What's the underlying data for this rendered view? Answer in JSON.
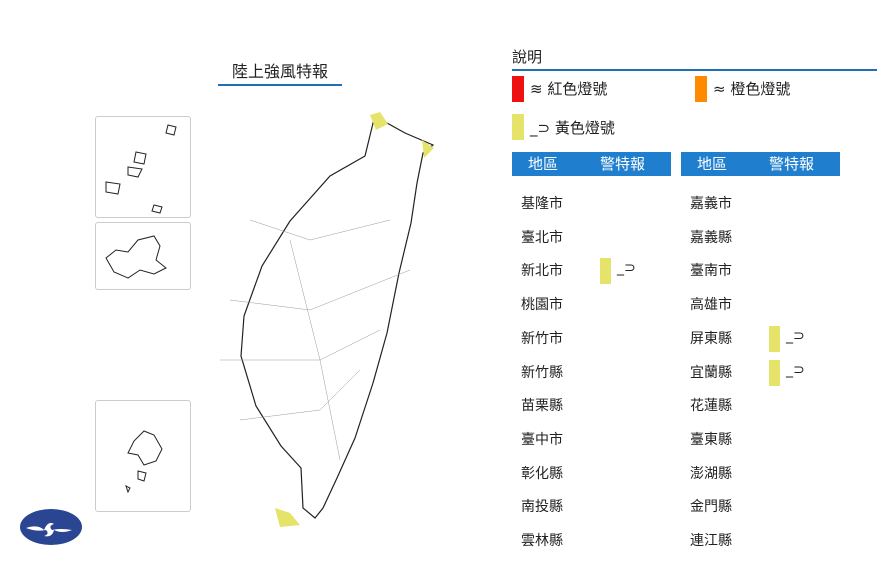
{
  "title": "陸上強風特報",
  "legend": {
    "title": "說明",
    "items": [
      {
        "label": "紅色燈號",
        "color": "#ee1111",
        "icon": "wind-3-icon"
      },
      {
        "label": "橙色燈號",
        "color": "#ff8a00",
        "icon": "wind-2-icon"
      },
      {
        "label": "黃色燈號",
        "color": "#e6e36a",
        "icon": "wind-1-icon"
      }
    ]
  },
  "table": {
    "col1": "地區",
    "col2": "警特報",
    "left": [
      {
        "name": "基隆市",
        "level": ""
      },
      {
        "name": "臺北市",
        "level": ""
      },
      {
        "name": "新北市",
        "level": "yellow"
      },
      {
        "name": "桃園市",
        "level": ""
      },
      {
        "name": "新竹市",
        "level": ""
      },
      {
        "name": "新竹縣",
        "level": ""
      },
      {
        "name": "苗栗縣",
        "level": ""
      },
      {
        "name": "臺中市",
        "level": ""
      },
      {
        "name": "彰化縣",
        "level": ""
      },
      {
        "name": "南投縣",
        "level": ""
      },
      {
        "name": "雲林縣",
        "level": ""
      }
    ],
    "right": [
      {
        "name": "嘉義市",
        "level": ""
      },
      {
        "name": "嘉義縣",
        "level": ""
      },
      {
        "name": "臺南市",
        "level": ""
      },
      {
        "name": "高雄市",
        "level": ""
      },
      {
        "name": "屏東縣",
        "level": "yellow"
      },
      {
        "name": "宜蘭縣",
        "level": "yellow"
      },
      {
        "name": "花蓮縣",
        "level": ""
      },
      {
        "name": "臺東縣",
        "level": ""
      },
      {
        "name": "澎湖縣",
        "level": ""
      },
      {
        "name": "金門縣",
        "level": ""
      },
      {
        "name": "連江縣",
        "level": ""
      }
    ]
  }
}
